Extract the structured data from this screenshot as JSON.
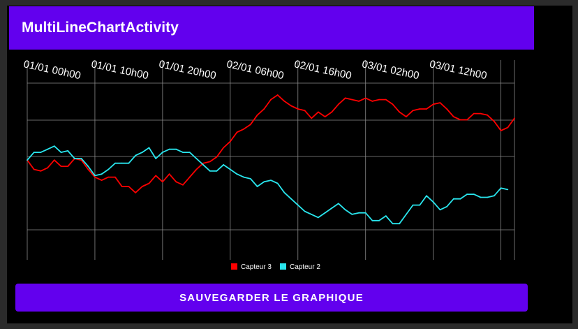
{
  "app_bar": {
    "title": "MultiLineChartActivity",
    "color": "#6200ee"
  },
  "button": {
    "label": "SAUVEGARDER LE GRAPHIQUE"
  },
  "chart_data": {
    "type": "line",
    "x_labels": [
      "01/01 00h00",
      "01/01 10h00",
      "01/01 20h00",
      "02/01 06h00",
      "02/01 16h00",
      "03/01 02h00",
      "03/01 12h00"
    ],
    "x_label_step": 10,
    "grid": true,
    "legend_position": "bottom-center",
    "y_range": [
      0,
      1
    ],
    "series": [
      {
        "name": "Capteur 3",
        "color": "#ff0000",
        "values": [
          0.49,
          0.43,
          0.42,
          0.44,
          0.49,
          0.45,
          0.45,
          0.5,
          0.49,
          0.43,
          0.38,
          0.36,
          0.38,
          0.38,
          0.32,
          0.32,
          0.28,
          0.32,
          0.34,
          0.39,
          0.35,
          0.4,
          0.35,
          0.33,
          0.38,
          0.43,
          0.47,
          0.48,
          0.51,
          0.57,
          0.61,
          0.67,
          0.69,
          0.72,
          0.78,
          0.82,
          0.88,
          0.91,
          0.87,
          0.84,
          0.82,
          0.81,
          0.76,
          0.8,
          0.77,
          0.8,
          0.85,
          0.89,
          0.88,
          0.87,
          0.89,
          0.87,
          0.88,
          0.88,
          0.85,
          0.8,
          0.77,
          0.81,
          0.82,
          0.82,
          0.85,
          0.86,
          0.82,
          0.77,
          0.75,
          0.75,
          0.79,
          0.79,
          0.78,
          0.74,
          0.68,
          0.7,
          0.76
        ]
      },
      {
        "name": "Capteur 2",
        "color": "#29e6ee",
        "values": [
          0.49,
          0.54,
          0.54,
          0.56,
          0.58,
          0.54,
          0.55,
          0.5,
          0.5,
          0.45,
          0.39,
          0.4,
          0.43,
          0.47,
          0.47,
          0.47,
          0.52,
          0.54,
          0.57,
          0.5,
          0.54,
          0.56,
          0.56,
          0.54,
          0.54,
          0.5,
          0.46,
          0.42,
          0.42,
          0.46,
          0.43,
          0.4,
          0.38,
          0.37,
          0.32,
          0.35,
          0.36,
          0.34,
          0.28,
          0.24,
          0.2,
          0.16,
          0.14,
          0.12,
          0.15,
          0.18,
          0.21,
          0.17,
          0.14,
          0.15,
          0.15,
          0.1,
          0.1,
          0.13,
          0.08,
          0.08,
          0.14,
          0.2,
          0.2,
          0.26,
          0.22,
          0.17,
          0.19,
          0.24,
          0.24,
          0.27,
          0.27,
          0.25,
          0.25,
          0.26,
          0.31,
          0.3
        ]
      }
    ]
  }
}
